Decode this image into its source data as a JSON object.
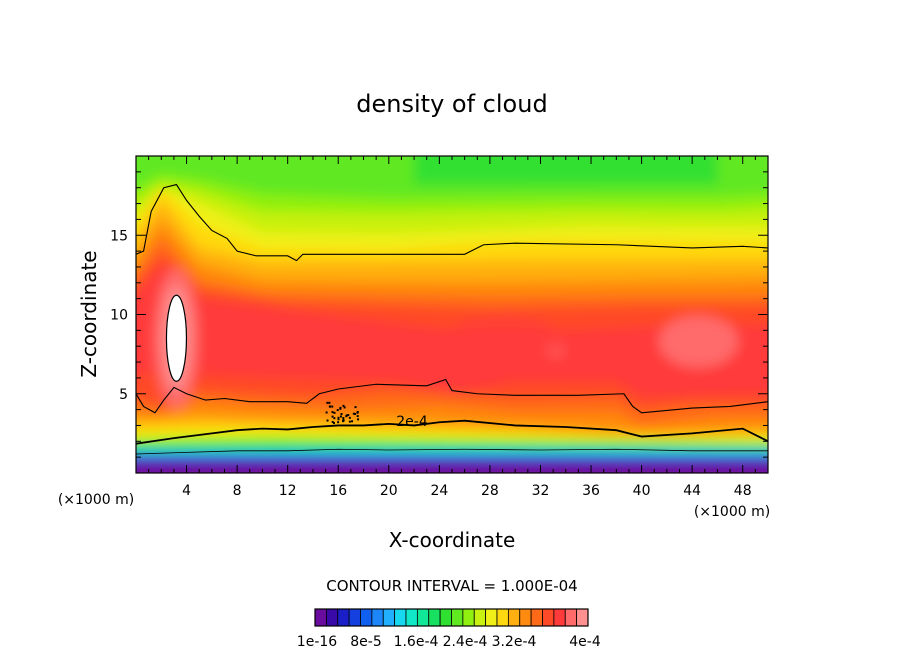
{
  "chart_data": {
    "type": "heatmap",
    "title": "density of cloud",
    "xlabel": "X-coordinate",
    "ylabel": "Z-coordinate",
    "x_unit_note": "(×1000 m)",
    "y_unit_note": "(×1000 m)",
    "xlim": [
      0,
      50
    ],
    "ylim": [
      0,
      20
    ],
    "x_ticks": [
      "4",
      "8",
      "12",
      "16",
      "20",
      "24",
      "28",
      "32",
      "36",
      "40",
      "44",
      "48"
    ],
    "y_ticks": [
      "5",
      "10",
      "15"
    ],
    "contour_interval_text": "CONTOUR INTERVAL = 1.000E-04",
    "contour_label": "2e-4",
    "colorbar": {
      "colors": [
        "#6a0c9e",
        "#3a0aa8",
        "#1a1fc8",
        "#1440e0",
        "#1060f0",
        "#1d86f8",
        "#20b0ff",
        "#18d8f0",
        "#10e8c8",
        "#10e898",
        "#18e060",
        "#30e030",
        "#60e820",
        "#90f010",
        "#c8f010",
        "#f0f018",
        "#ffd810",
        "#ffb010",
        "#ff8a10",
        "#ff6a18",
        "#ff4a28",
        "#ff3a3a",
        "#ff6a6a",
        "#ff9090"
      ],
      "labels": [
        "1e-16",
        "8e-5",
        "1.6e-4",
        "2.4e-4",
        "3.2e-4",
        "4e-4"
      ]
    }
  }
}
